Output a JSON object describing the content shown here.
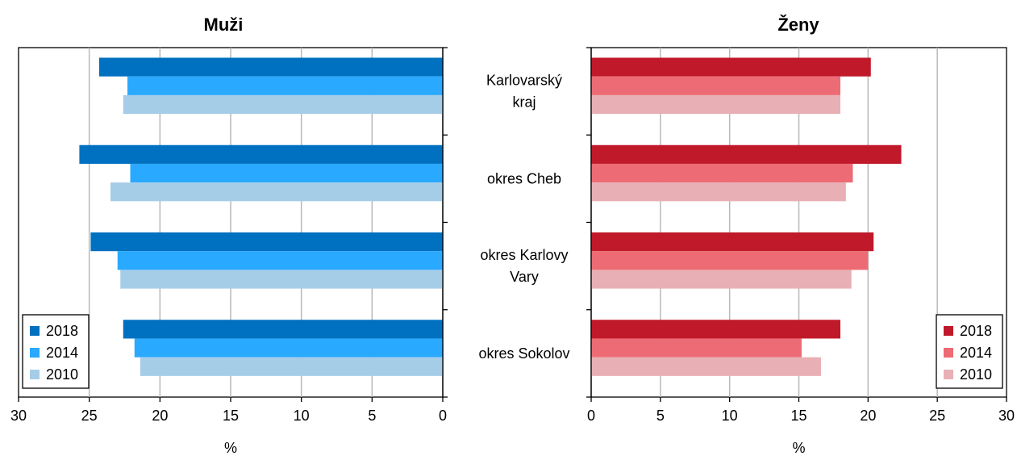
{
  "chart_data": [
    {
      "type": "bar",
      "orientation": "horizontal",
      "title": "Muži",
      "xlabel": "%",
      "xlim": [
        0,
        30
      ],
      "x_reversed": true,
      "xticks": [
        30,
        25,
        20,
        15,
        10,
        5,
        0
      ],
      "grid": true,
      "legend_position": "bottom-left",
      "categories": [
        "Karlovarský kraj",
        "okres Cheb",
        "okres Karlovy Vary",
        "okres Sokolov"
      ],
      "show_category_labels": false,
      "series": [
        {
          "name": "2018",
          "color": "#0070c0",
          "values": [
            24.3,
            25.7,
            24.9,
            22.6
          ]
        },
        {
          "name": "2014",
          "color": "#29a9ff",
          "values": [
            22.3,
            22.1,
            23.0,
            21.8
          ]
        },
        {
          "name": "2010",
          "color": "#a6cde8",
          "values": [
            22.6,
            23.5,
            22.8,
            21.4
          ]
        }
      ]
    },
    {
      "type": "bar",
      "orientation": "horizontal",
      "title": "Ženy",
      "xlabel": "%",
      "xlim": [
        0,
        30
      ],
      "x_reversed": false,
      "xticks": [
        0,
        5,
        10,
        15,
        20,
        25,
        30
      ],
      "grid": true,
      "legend_position": "bottom-right",
      "categories": [
        "Karlovarský kraj",
        "okres Cheb",
        "okres Karlovy Vary",
        "okres Sokolov"
      ],
      "show_category_labels": true,
      "series": [
        {
          "name": "2018",
          "color": "#c0192a",
          "values": [
            20.2,
            22.4,
            20.4,
            18.0
          ]
        },
        {
          "name": "2014",
          "color": "#ed6b74",
          "values": [
            18.0,
            18.9,
            20.0,
            15.2
          ]
        },
        {
          "name": "2010",
          "color": "#e8b0b4",
          "values": [
            18.0,
            18.4,
            18.8,
            16.6
          ]
        }
      ]
    }
  ]
}
